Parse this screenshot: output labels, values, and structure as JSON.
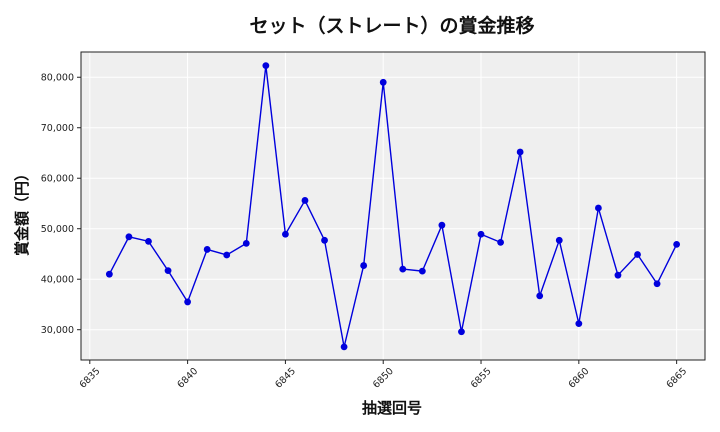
{
  "chart_data": {
    "type": "line",
    "title": "セット（ストレート）の賞金推移",
    "xlabel": "抽選回号",
    "ylabel": "賞金額（円）",
    "xlim": [
      6834.55,
      6866.45
    ],
    "ylim": [
      24000,
      85000
    ],
    "x_ticks": [
      6835,
      6840,
      6845,
      6850,
      6855,
      6860,
      6865
    ],
    "x_tick_labels": [
      "6835",
      "6840",
      "6845",
      "6850",
      "6855",
      "6860",
      "6865"
    ],
    "y_ticks": [
      30000,
      40000,
      50000,
      60000,
      70000,
      80000
    ],
    "y_tick_labels": [
      "30,000",
      "40,000",
      "50,000",
      "60,000",
      "70,000",
      "80,000"
    ],
    "grid": true,
    "background": "#efefef",
    "series": [
      {
        "color": "#0000dd",
        "marker": "circle",
        "x": [
          6836,
          6837,
          6838,
          6839,
          6840,
          6841,
          6842,
          6843,
          6844,
          6845,
          6846,
          6847,
          6848,
          6849,
          6850,
          6851,
          6852,
          6853,
          6854,
          6855,
          6856,
          6857,
          6858,
          6859,
          6860,
          6861,
          6862,
          6863,
          6864,
          6865
        ],
        "y": [
          41000,
          48400,
          47500,
          41700,
          35500,
          45900,
          44800,
          47100,
          82300,
          48900,
          55600,
          47700,
          26600,
          42700,
          79000,
          42000,
          41600,
          50700,
          29600,
          48900,
          47300,
          65200,
          36700,
          47700,
          31200,
          54100,
          40800,
          44900,
          39100,
          46900
        ]
      }
    ]
  }
}
